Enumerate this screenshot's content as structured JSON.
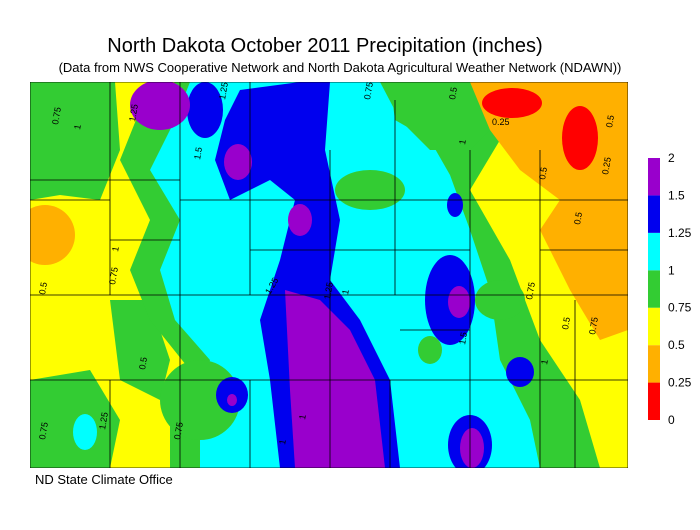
{
  "header": {
    "title": "North Dakota October 2011 Precipitation (inches)",
    "subtitle": "(Data from NWS Cooperative Network and North Dakota Agricultural Weather Network (NDAWN))"
  },
  "legend": {
    "levels": [
      0,
      0.25,
      0.5,
      0.75,
      1,
      1.25,
      1.5,
      2
    ],
    "colors": [
      "#ff0000",
      "#ffb000",
      "#ffff00",
      "#33cc33",
      "#00ffff",
      "#0000ee",
      "#9900cc"
    ]
  },
  "contour_labels": [
    0.75,
    1,
    1.25,
    1.5,
    1.25,
    0.75,
    0.5,
    0.25,
    0.5,
    0.5,
    0.25,
    1,
    0.5,
    1,
    0.75,
    1.25,
    1.25,
    1,
    0.5,
    0.75,
    0.5,
    1,
    1.5,
    1,
    0.75,
    0.75,
    1.25,
    1,
    0.5,
    0.75
  ],
  "footer": {
    "credit": "ND State Climate Office"
  }
}
